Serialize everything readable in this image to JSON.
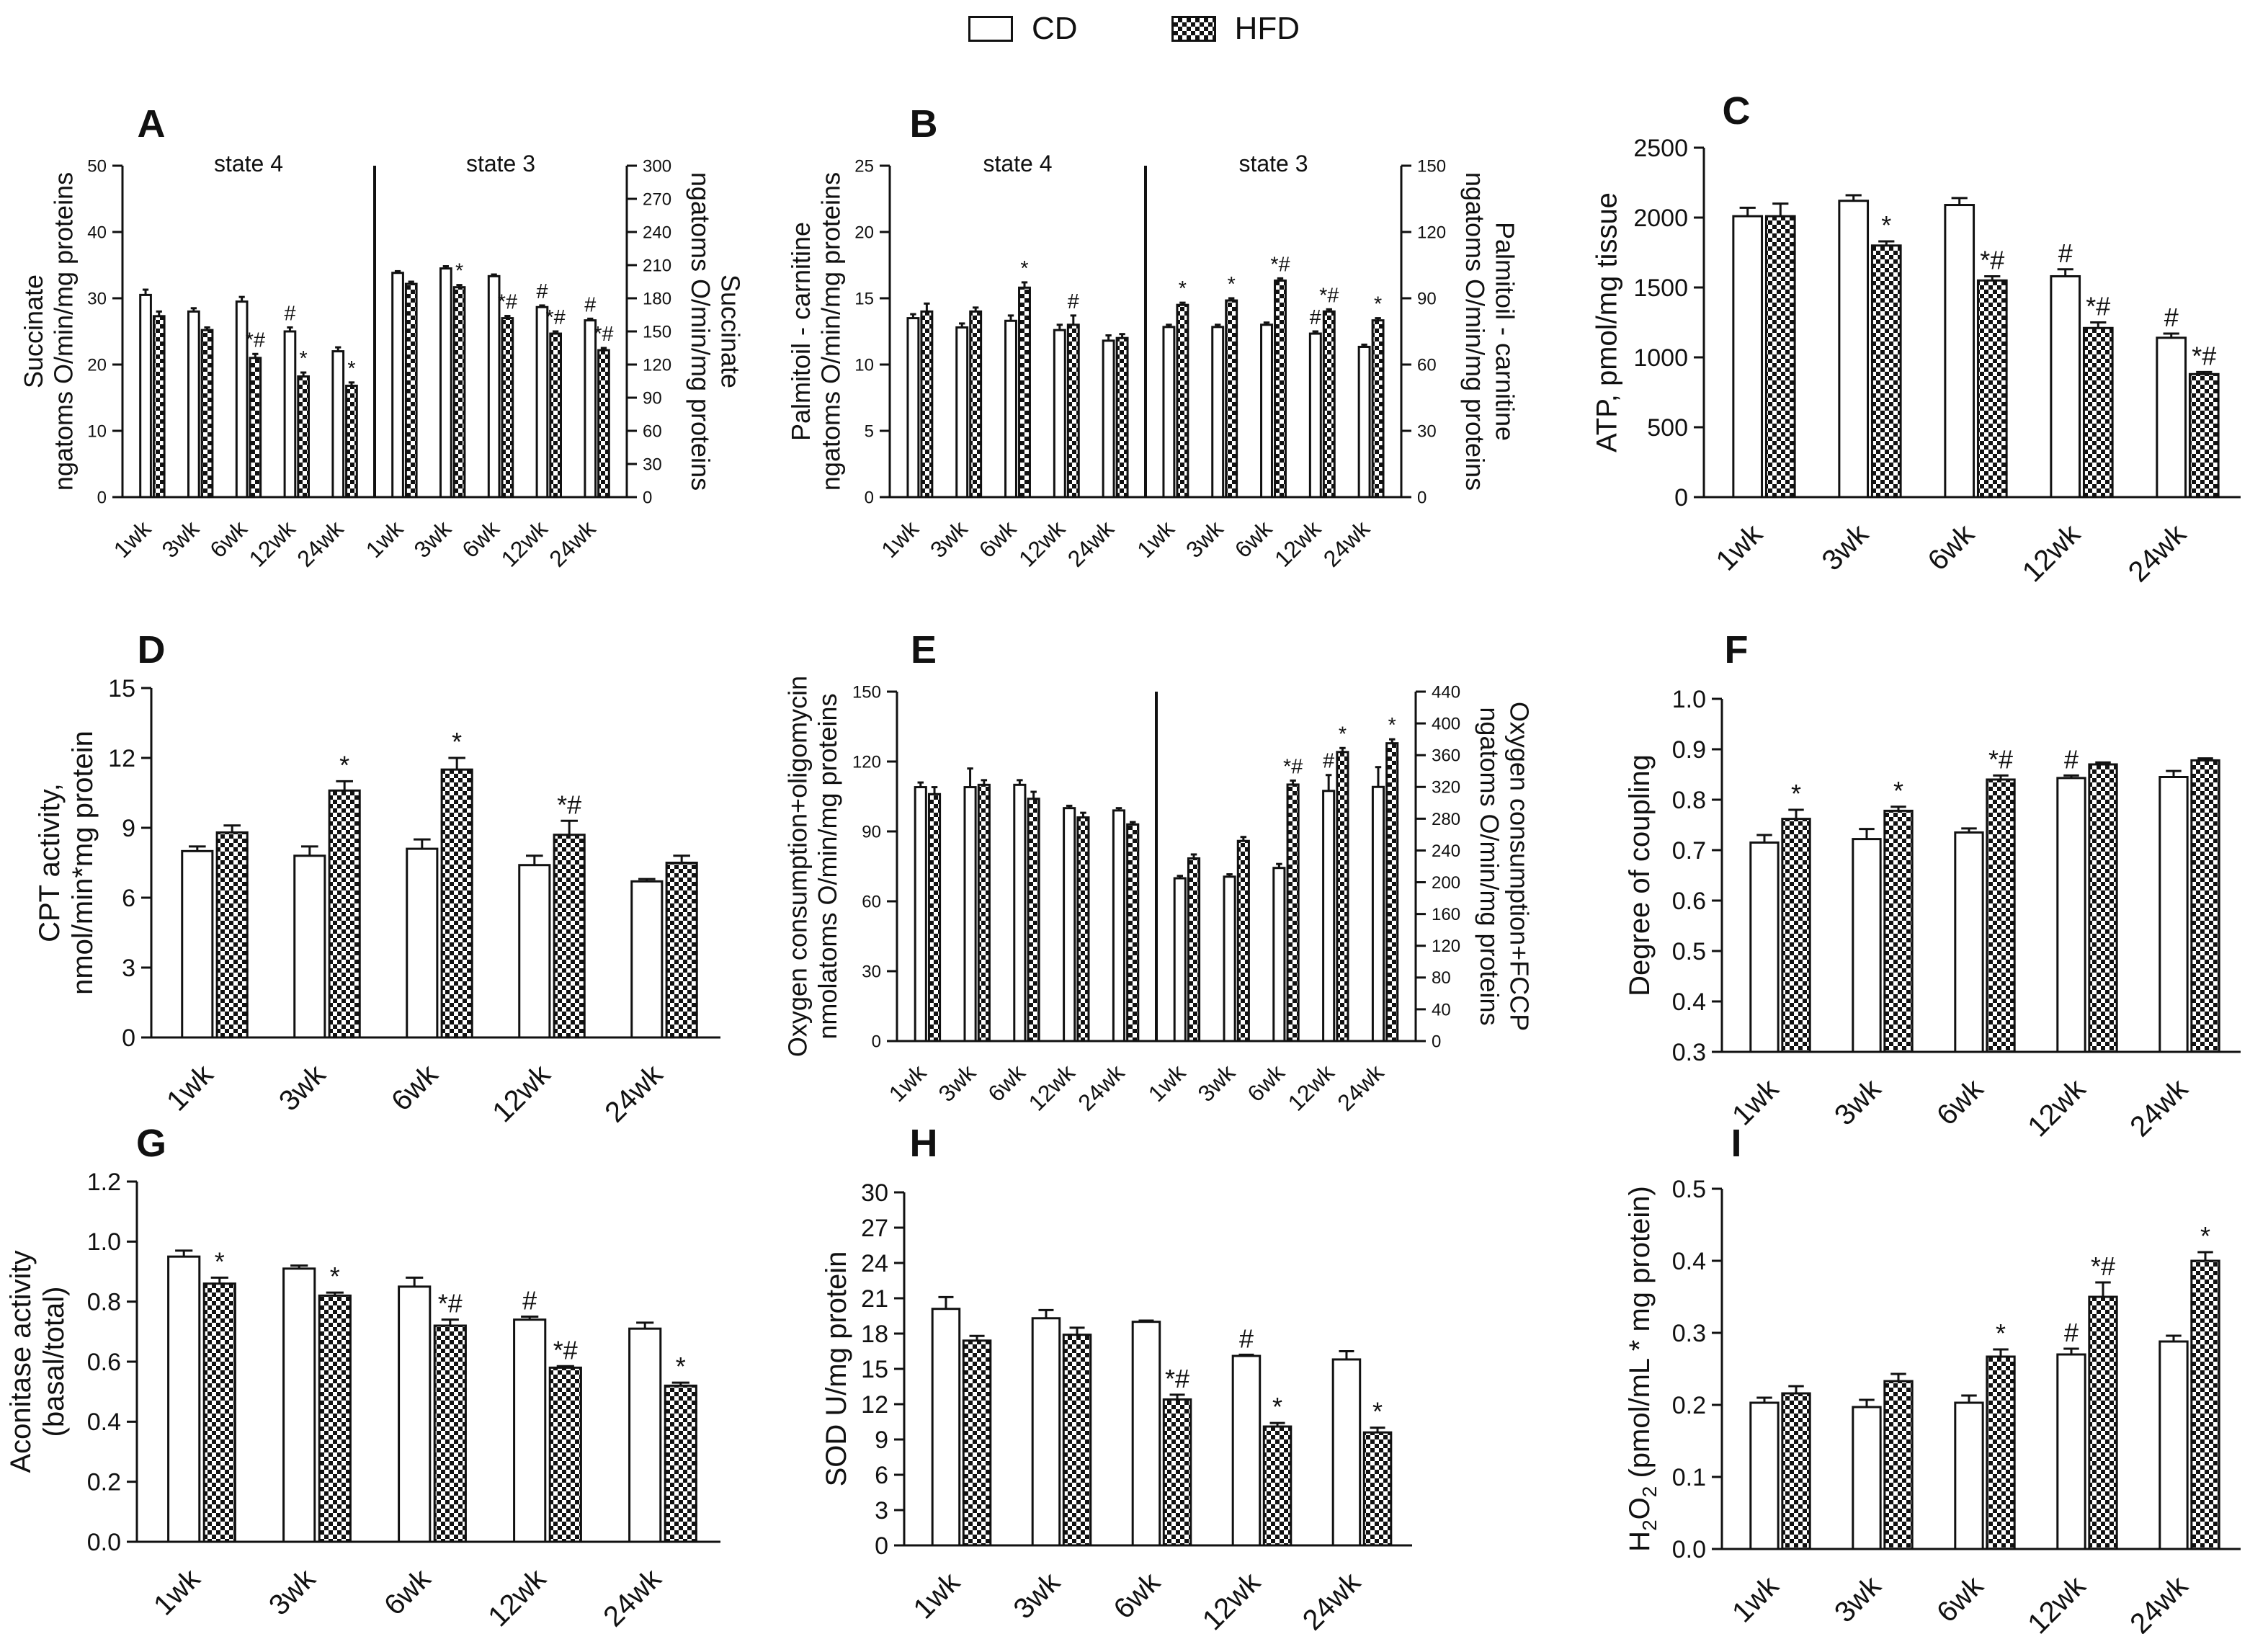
{
  "legend": {
    "cd_label": "CD",
    "hfd_label": "HFD"
  },
  "colors": {
    "ink": "#111111",
    "cd_fill": "#ffffff"
  },
  "chart_data": [
    {
      "panel": "A",
      "type": "bar",
      "dual_axis": true,
      "sections": [
        {
          "label": "state 4",
          "axis": "left",
          "categories": [
            "1wk",
            "3wk",
            "6wk",
            "12wk",
            "24wk"
          ],
          "cd": [
            30.5,
            28,
            29.5,
            25,
            22
          ],
          "cd_err": [
            0.8,
            0.5,
            0.7,
            0.6,
            0.6
          ],
          "cd_marks": [
            "",
            "",
            "",
            "#",
            ""
          ],
          "hfd": [
            27.3,
            25.2,
            21,
            18.2,
            16.8
          ],
          "hfd_err": [
            0.7,
            0.4,
            0.6,
            0.6,
            0.5
          ],
          "hfd_marks": [
            "",
            "",
            "*#",
            "*",
            "*"
          ]
        },
        {
          "label": "state 3",
          "axis": "right",
          "categories": [
            "1wk",
            "3wk",
            "6wk",
            "12wk",
            "24wk"
          ],
          "cd": [
            203,
            207,
            200,
            172,
            160
          ],
          "cd_err": [
            1.5,
            2,
            1.5,
            1.5,
            1.5
          ],
          "cd_marks": [
            "",
            "",
            "",
            "#",
            "#"
          ],
          "hfd": [
            193,
            190,
            162,
            148,
            133
          ],
          "hfd_err": [
            2,
            2,
            2,
            2,
            2
          ],
          "hfd_marks": [
            "",
            "*",
            "*#",
            "*#",
            "*#"
          ]
        }
      ],
      "left_axis": {
        "label_lines": [
          "Succinate",
          "ngatoms O/min/mg proteins"
        ],
        "range": [
          0,
          50
        ],
        "ticks": [
          0,
          10,
          20,
          30,
          40,
          50
        ]
      },
      "right_axis": {
        "label_lines": [
          "Succinate",
          "ngatoms O/min/mg proteins"
        ],
        "range": [
          0,
          300
        ],
        "ticks": [
          0,
          30,
          60,
          90,
          120,
          150,
          180,
          210,
          240,
          270,
          300
        ]
      }
    },
    {
      "panel": "B",
      "type": "bar",
      "dual_axis": true,
      "sections": [
        {
          "label": "state 4",
          "axis": "left",
          "categories": [
            "1wk",
            "3wk",
            "6wk",
            "12wk",
            "24wk"
          ],
          "cd": [
            13.5,
            12.8,
            13.3,
            12.6,
            11.8
          ],
          "cd_err": [
            0.3,
            0.3,
            0.4,
            0.4,
            0.4
          ],
          "cd_marks": [
            "",
            "",
            "",
            "",
            ""
          ],
          "hfd": [
            14,
            14,
            15.8,
            13,
            12
          ],
          "hfd_err": [
            0.6,
            0.3,
            0.4,
            0.7,
            0.3
          ],
          "hfd_marks": [
            "",
            "",
            "*",
            "#",
            ""
          ]
        },
        {
          "label": "state 3",
          "axis": "right",
          "categories": [
            "1wk",
            "3wk",
            "6wk",
            "12wk",
            "24wk"
          ],
          "cd": [
            77,
            77,
            78,
            74,
            68
          ],
          "cd_err": [
            1,
            1,
            1,
            1,
            1
          ],
          "cd_marks": [
            "",
            "",
            "",
            "#",
            ""
          ],
          "hfd": [
            87,
            89,
            98,
            84,
            80
          ],
          "hfd_err": [
            1,
            1,
            1,
            1,
            1
          ],
          "hfd_marks": [
            "*",
            "*",
            "*#",
            "*#",
            "*"
          ]
        }
      ],
      "left_axis": {
        "label_lines": [
          "Palmitoil - carnitine",
          "ngatoms O/min/mg proteins"
        ],
        "range": [
          0,
          25
        ],
        "ticks": [
          0,
          5,
          10,
          15,
          20,
          25
        ]
      },
      "right_axis": {
        "label_lines": [
          "Palmitoil - carnitine",
          "ngatoms O/min/mg proteins"
        ],
        "range": [
          0,
          150
        ],
        "ticks": [
          0,
          30,
          60,
          90,
          120,
          150
        ]
      }
    },
    {
      "panel": "C",
      "type": "bar",
      "categories": [
        "1wk",
        "3wk",
        "6wk",
        "12wk",
        "24wk"
      ],
      "cd": [
        2010,
        2120,
        2090,
        1580,
        1140
      ],
      "cd_err": [
        60,
        40,
        50,
        50,
        30
      ],
      "cd_marks": [
        "",
        "",
        "",
        "#",
        "#"
      ],
      "hfd": [
        2010,
        1800,
        1550,
        1210,
        880
      ],
      "hfd_err": [
        90,
        30,
        30,
        40,
        15
      ],
      "hfd_marks": [
        "",
        "*",
        "*#",
        "*#",
        "*#"
      ],
      "y_axis": {
        "label_lines": [
          "ATP, pmol/mg tissue"
        ],
        "range": [
          0,
          2500
        ],
        "ticks": [
          0,
          500,
          1000,
          1500,
          2000,
          2500
        ]
      }
    },
    {
      "panel": "D",
      "type": "bar",
      "categories": [
        "1wk",
        "3wk",
        "6wk",
        "12wk",
        "24wk"
      ],
      "cd": [
        8.0,
        7.8,
        8.1,
        7.4,
        6.7
      ],
      "cd_err": [
        0.2,
        0.4,
        0.4,
        0.4,
        0.1
      ],
      "cd_marks": [
        "",
        "",
        "",
        "",
        ""
      ],
      "hfd": [
        8.8,
        10.6,
        11.5,
        8.7,
        7.5
      ],
      "hfd_err": [
        0.3,
        0.4,
        0.5,
        0.6,
        0.3
      ],
      "hfd_marks": [
        "",
        "*",
        "*",
        "*#",
        ""
      ],
      "y_axis": {
        "label_lines": [
          "CPT activity,",
          "nmol/min*mg protein"
        ],
        "range": [
          0,
          15
        ],
        "ticks": [
          0,
          3,
          6,
          9,
          12,
          15
        ]
      }
    },
    {
      "panel": "E",
      "type": "bar",
      "dual_axis": true,
      "sections": [
        {
          "axis": "left",
          "categories": [
            "1wk",
            "3wk",
            "6wk",
            "12wk",
            "24wk"
          ],
          "cd": [
            109,
            109,
            110,
            100,
            99
          ],
          "cd_err": [
            2,
            8,
            2,
            1,
            1
          ],
          "cd_marks": [
            "",
            "",
            "",
            "",
            ""
          ],
          "hfd": [
            106,
            110,
            104,
            96,
            93
          ],
          "hfd_err": [
            3,
            2,
            3,
            2,
            1
          ],
          "hfd_marks": [
            "",
            "",
            "",
            "",
            ""
          ]
        },
        {
          "axis": "right",
          "categories": [
            "1wk",
            "3wk",
            "6wk",
            "12wk",
            "24wk"
          ],
          "cd": [
            205,
            207,
            218,
            315,
            320
          ],
          "cd_err": [
            3,
            3,
            5,
            20,
            25
          ],
          "cd_marks": [
            "",
            "",
            "",
            "#",
            ""
          ],
          "hfd": [
            230,
            252,
            323,
            364,
            375
          ],
          "hfd_err": [
            5,
            5,
            5,
            5,
            5
          ],
          "hfd_marks": [
            "",
            "",
            "*#",
            "*",
            "*"
          ]
        }
      ],
      "left_axis": {
        "label_lines": [
          "Oxygen consumption+oligomycin",
          "nmolatoms O/min/mg proteins"
        ],
        "range": [
          0,
          150
        ],
        "ticks": [
          0,
          30,
          60,
          90,
          120,
          150
        ]
      },
      "right_axis": {
        "label_lines": [
          "Oxygen consumption+FCCP",
          "ngatoms O/min/mg proteins"
        ],
        "range": [
          0,
          440
        ],
        "ticks": [
          0,
          40,
          80,
          120,
          160,
          200,
          240,
          280,
          320,
          360,
          400,
          440
        ]
      }
    },
    {
      "panel": "F",
      "type": "bar",
      "categories": [
        "1wk",
        "3wk",
        "6wk",
        "12wk",
        "24wk"
      ],
      "cd": [
        0.715,
        0.722,
        0.735,
        0.843,
        0.845
      ],
      "cd_err": [
        0.015,
        0.02,
        0.008,
        0.005,
        0.012
      ],
      "cd_marks": [
        "",
        "",
        "",
        "#",
        ""
      ],
      "hfd": [
        0.762,
        0.778,
        0.84,
        0.87,
        0.878
      ],
      "hfd_err": [
        0.018,
        0.008,
        0.008,
        0.004,
        0.004
      ],
      "hfd_marks": [
        "*",
        "*",
        "*#",
        "",
        ""
      ],
      "y_axis": {
        "label_lines": [
          "Degree of coupling"
        ],
        "range": [
          0.3,
          1.0
        ],
        "ticks": [
          0.3,
          0.4,
          0.5,
          0.6,
          0.7,
          0.8,
          0.9,
          1.0
        ]
      }
    },
    {
      "panel": "G",
      "type": "bar",
      "categories": [
        "1wk",
        "3wk",
        "6wk",
        "12wk",
        "24wk"
      ],
      "cd": [
        0.95,
        0.91,
        0.85,
        0.74,
        0.71
      ],
      "cd_err": [
        0.02,
        0.01,
        0.03,
        0.01,
        0.02
      ],
      "cd_marks": [
        "",
        "",
        "",
        "#",
        ""
      ],
      "hfd": [
        0.86,
        0.82,
        0.72,
        0.58,
        0.52
      ],
      "hfd_err": [
        0.02,
        0.01,
        0.02,
        0.005,
        0.01
      ],
      "hfd_marks": [
        "*",
        "*",
        "*#",
        "*#",
        "*"
      ],
      "y_axis": {
        "label_lines": [
          "Aconitase activity",
          "(basal/total)"
        ],
        "range": [
          0,
          1.2
        ],
        "ticks": [
          0.0,
          0.2,
          0.4,
          0.6,
          0.8,
          1.0,
          1.2
        ]
      }
    },
    {
      "panel": "H",
      "type": "bar",
      "categories": [
        "1wk",
        "3wk",
        "6wk",
        "12wk",
        "24wk"
      ],
      "cd": [
        20.1,
        19.3,
        19.0,
        16.1,
        15.8
      ],
      "cd_err": [
        1.0,
        0.7,
        0.1,
        0.1,
        0.7
      ],
      "cd_marks": [
        "",
        "",
        "",
        "#",
        ""
      ],
      "hfd": [
        17.4,
        17.9,
        12.4,
        10.1,
        9.6
      ],
      "hfd_err": [
        0.4,
        0.6,
        0.4,
        0.3,
        0.4
      ],
      "hfd_marks": [
        "",
        "",
        "*#",
        "*",
        "*"
      ],
      "y_axis": {
        "label_lines": [
          "SOD U/mg protein"
        ],
        "range": [
          0,
          30
        ],
        "ticks": [
          0,
          3,
          6,
          9,
          12,
          15,
          18,
          21,
          24,
          27,
          30
        ]
      }
    },
    {
      "panel": "I",
      "type": "bar",
      "categories": [
        "1wk",
        "3wk",
        "6wk",
        "12wk",
        "24wk"
      ],
      "cd": [
        0.203,
        0.197,
        0.203,
        0.27,
        0.288
      ],
      "cd_err": [
        0.007,
        0.01,
        0.01,
        0.008,
        0.008
      ],
      "cd_marks": [
        "",
        "",
        "",
        "#",
        ""
      ],
      "hfd": [
        0.216,
        0.233,
        0.267,
        0.35,
        0.4
      ],
      "hfd_err": [
        0.01,
        0.01,
        0.01,
        0.02,
        0.012
      ],
      "hfd_marks": [
        "",
        "",
        "*",
        "*#",
        "*"
      ],
      "y_axis": {
        "label_lines": [
          "H2O2 (pmol/mL * mg protein)"
        ],
        "range": [
          0,
          0.5
        ],
        "ticks": [
          0.0,
          0.1,
          0.2,
          0.3,
          0.4,
          0.5
        ]
      }
    }
  ]
}
